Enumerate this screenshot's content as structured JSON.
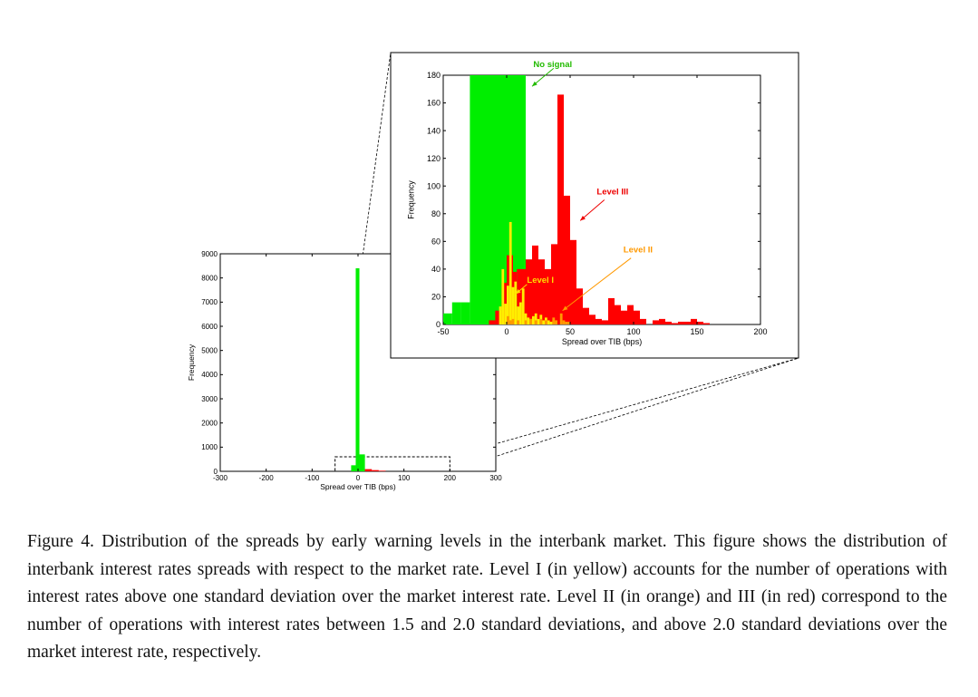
{
  "chart_data": [
    {
      "type": "bar",
      "xlabel": "Spread over TIB (bps)",
      "ylabel": "Frequency",
      "xlim": [
        -300,
        300
      ],
      "ylim": [
        0,
        9000
      ],
      "x_ticks": [
        "-300",
        "-200",
        "-100",
        "0",
        "100",
        "200",
        "300"
      ],
      "y_ticks": [
        "0",
        "1000",
        "2000",
        "3000",
        "4000",
        "5000",
        "6000",
        "7000",
        "8000",
        "9000"
      ],
      "series": [
        {
          "color": "#00ee00",
          "bars": [
            {
              "x0": -15,
              "x1": -5,
              "value": 250
            },
            {
              "x0": -5,
              "x1": 3,
              "value": 8400
            },
            {
              "x0": 3,
              "x1": 15,
              "value": 700
            },
            {
              "x0": 15,
              "x1": 20,
              "value": 60
            }
          ]
        },
        {
          "color": "#ff0000",
          "bars": [
            {
              "x0": 15,
              "x1": 30,
              "value": 90
            },
            {
              "x0": 30,
              "x1": 45,
              "value": 50
            },
            {
              "x0": 45,
              "x1": 60,
              "value": 25
            }
          ]
        }
      ]
    },
    {
      "type": "bar",
      "xlabel": "Spread over TIB (bps)",
      "ylabel": "Frequency",
      "xlim": [
        -50,
        200
      ],
      "ylim": [
        0,
        180
      ],
      "x_ticks": [
        "-50",
        "0",
        "50",
        "100",
        "150",
        "200"
      ],
      "y_ticks": [
        "0",
        "20",
        "40",
        "60",
        "80",
        "100",
        "120",
        "140",
        "160",
        "180"
      ],
      "annotations": [
        {
          "text": "No signal",
          "color": "#22bb00"
        },
        {
          "text": "Level III",
          "color": "#ee0000"
        },
        {
          "text": "Level II",
          "color": "#ff9900"
        },
        {
          "text": "Level I",
          "color": "#ffdd00"
        }
      ],
      "series": [
        {
          "color": "#00ee00",
          "bars": [
            {
              "x0": -50,
              "x1": -43,
              "value": 8
            },
            {
              "x0": -43,
              "x1": -36,
              "value": 16
            },
            {
              "x0": -36,
              "x1": -29,
              "value": 16
            },
            {
              "x0": -29,
              "x1": 15,
              "value": 180
            }
          ]
        },
        {
          "color": "#ff0000",
          "bars": [
            {
              "x0": -29,
              "x1": -25,
              "value": 0
            },
            {
              "x0": -14,
              "x1": -9,
              "value": 3
            },
            {
              "x0": -9,
              "x1": -4,
              "value": 10
            },
            {
              "x0": -4,
              "x1": 0,
              "value": 30
            },
            {
              "x0": 0,
              "x1": 5,
              "value": 50
            },
            {
              "x0": 5,
              "x1": 8,
              "value": 38
            },
            {
              "x0": 8,
              "x1": 15,
              "value": 40
            },
            {
              "x0": 15,
              "x1": 20,
              "value": 47
            },
            {
              "x0": 20,
              "x1": 25,
              "value": 57
            },
            {
              "x0": 25,
              "x1": 30,
              "value": 47
            },
            {
              "x0": 30,
              "x1": 35,
              "value": 40
            },
            {
              "x0": 35,
              "x1": 40,
              "value": 58
            },
            {
              "x0": 40,
              "x1": 45,
              "value": 166
            },
            {
              "x0": 45,
              "x1": 50,
              "value": 93
            },
            {
              "x0": 50,
              "x1": 55,
              "value": 61
            },
            {
              "x0": 55,
              "x1": 60,
              "value": 26
            },
            {
              "x0": 60,
              "x1": 65,
              "value": 12
            },
            {
              "x0": 65,
              "x1": 70,
              "value": 7
            },
            {
              "x0": 70,
              "x1": 75,
              "value": 4
            },
            {
              "x0": 75,
              "x1": 80,
              "value": 3
            },
            {
              "x0": 80,
              "x1": 85,
              "value": 19
            },
            {
              "x0": 85,
              "x1": 90,
              "value": 14
            },
            {
              "x0": 90,
              "x1": 95,
              "value": 10
            },
            {
              "x0": 95,
              "x1": 100,
              "value": 14
            },
            {
              "x0": 100,
              "x1": 105,
              "value": 10
            },
            {
              "x0": 105,
              "x1": 110,
              "value": 4
            },
            {
              "x0": 115,
              "x1": 120,
              "value": 3
            },
            {
              "x0": 120,
              "x1": 125,
              "value": 4
            },
            {
              "x0": 125,
              "x1": 130,
              "value": 2
            },
            {
              "x0": 130,
              "x1": 135,
              "value": 1
            },
            {
              "x0": 135,
              "x1": 140,
              "value": 2
            },
            {
              "x0": 140,
              "x1": 145,
              "value": 2
            },
            {
              "x0": 145,
              "x1": 150,
              "value": 4
            },
            {
              "x0": 150,
              "x1": 155,
              "value": 2
            },
            {
              "x0": 155,
              "x1": 160,
              "value": 1
            }
          ]
        },
        {
          "color": "#ffee00",
          "bars": [
            {
              "x0": -6,
              "x1": -4,
              "value": 13
            },
            {
              "x0": -4,
              "x1": -2,
              "value": 40
            },
            {
              "x0": -2,
              "x1": 0,
              "value": 15
            },
            {
              "x0": 0,
              "x1": 2,
              "value": 28
            },
            {
              "x0": 2,
              "x1": 4,
              "value": 74
            },
            {
              "x0": 4,
              "x1": 6,
              "value": 27
            },
            {
              "x0": 6,
              "x1": 8,
              "value": 31
            },
            {
              "x0": 8,
              "x1": 10,
              "value": 13
            },
            {
              "x0": 10,
              "x1": 12,
              "value": 16
            },
            {
              "x0": 12,
              "x1": 14,
              "value": 26
            },
            {
              "x0": 14,
              "x1": 16,
              "value": 8
            },
            {
              "x0": 16,
              "x1": 18,
              "value": 5
            },
            {
              "x0": 18,
              "x1": 20,
              "value": 4
            },
            {
              "x0": 20,
              "x1": 22,
              "value": 6
            },
            {
              "x0": 22,
              "x1": 24,
              "value": 8
            },
            {
              "x0": 24,
              "x1": 26,
              "value": 4
            },
            {
              "x0": 26,
              "x1": 28,
              "value": 7
            },
            {
              "x0": 28,
              "x1": 30,
              "value": 3
            },
            {
              "x0": 30,
              "x1": 32,
              "value": 5
            },
            {
              "x0": 32,
              "x1": 34,
              "value": 3
            },
            {
              "x0": 34,
              "x1": 36,
              "value": 2
            },
            {
              "x0": 36,
              "x1": 38,
              "value": 3
            },
            {
              "x0": 38,
              "x1": 40,
              "value": 2
            }
          ]
        },
        {
          "color": "#ff9900",
          "bars": [
            {
              "x0": 0,
              "x1": 2,
              "value": 6
            },
            {
              "x0": 2,
              "x1": 4,
              "value": 3
            },
            {
              "x0": 4,
              "x1": 6,
              "value": 4
            },
            {
              "x0": 8,
              "x1": 10,
              "value": 3
            },
            {
              "x0": 14,
              "x1": 16,
              "value": 3
            },
            {
              "x0": 18,
              "x1": 20,
              "value": 4
            },
            {
              "x0": 22,
              "x1": 24,
              "value": 3
            },
            {
              "x0": 26,
              "x1": 28,
              "value": 4
            },
            {
              "x0": 30,
              "x1": 32,
              "value": 3
            },
            {
              "x0": 36,
              "x1": 38,
              "value": 5
            },
            {
              "x0": 38,
              "x1": 40,
              "value": 3
            },
            {
              "x0": 42,
              "x1": 44,
              "value": 8
            },
            {
              "x0": 44,
              "x1": 46,
              "value": 3
            },
            {
              "x0": 46,
              "x1": 48,
              "value": 2
            },
            {
              "x0": 48,
              "x1": 50,
              "value": 2
            }
          ]
        }
      ]
    }
  ],
  "caption": "Figure 4. Distribution of the spreads by early warning levels in the interbank market. This figure shows the distribution of interbank interest rates spreads with respect to the market rate. Level I (in yellow) accounts for the number of operations with interest rates above one standard deviation over the market interest rate. Level II (in orange) and III (in red) correspond to the number of operations with interest rates between 1.5 and 2.0 standard deviations, and above 2.0 standard deviations over the market interest rate, respectively."
}
